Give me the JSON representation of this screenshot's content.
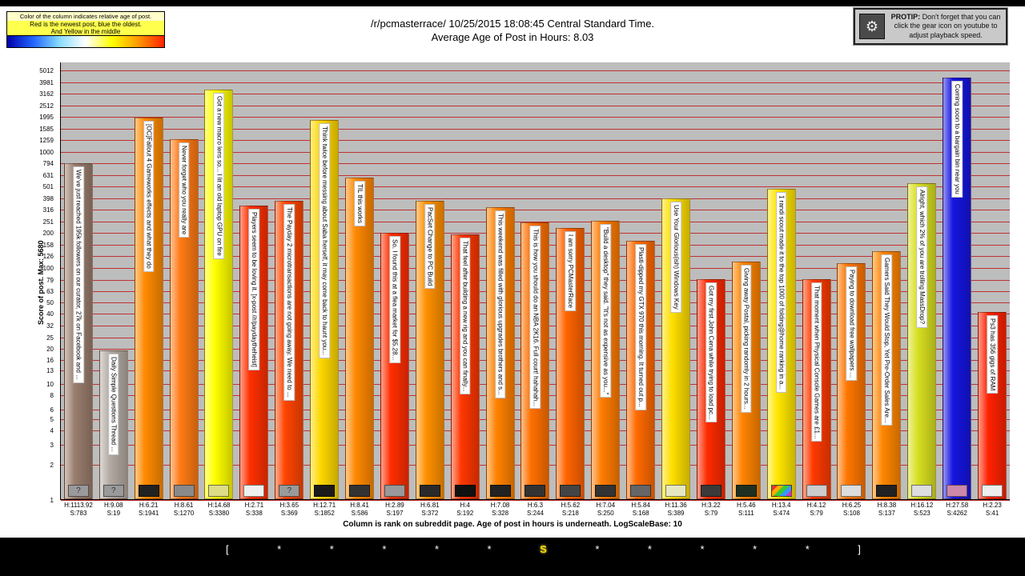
{
  "header": {
    "title_line1": "/r/pcmasterrace/ 10/25/2015 18:08:45 Central Standard Time.",
    "title_line2": "Average Age of Post in Hours: 8.03"
  },
  "legend": {
    "line1": "Color of the column indicates relative age of post.",
    "line2": "Red is the newest post, blue the oldest.",
    "line3": "And Yellow in the middle",
    "gradient": [
      "#0000aa",
      "#2266ff",
      "#88ddff",
      "#ffffff",
      "#ffff00",
      "#ff9900",
      "#ff2200"
    ]
  },
  "protip": {
    "label": "PROTIP:",
    "text": "Don't forget that you can click the gear icon on youtube to adjust playback speed.",
    "gear_icon": "⚙"
  },
  "chart_data": {
    "type": "bar",
    "title": "/r/pcmasterrace/ 10/25/2015 18:08:45 Central Standard Time. Average Age of Post in Hours: 8.03",
    "ylabel": "Score of post.  Max: 5680",
    "xlabel_caption": "Column is rank on subreddit page. Age of post in hours is underneath. LogScaleBase: 10",
    "y_scale": "log10",
    "y_max": 5012,
    "yticks": [
      5012,
      3981,
      3162,
      2512,
      1995,
      1585,
      1259,
      1000,
      794,
      631,
      501,
      398,
      316,
      251,
      200,
      158,
      126,
      100,
      79,
      63,
      50,
      40,
      32,
      25,
      20,
      16,
      13,
      10,
      8,
      6,
      5,
      4,
      3,
      2,
      1
    ],
    "grid_color": "#c03030",
    "plot_bg": "#bdbdbd",
    "bars": [
      {
        "rank": 1,
        "title": "We've just reached 195k followers on our curator, 27k on Facebook and ...",
        "hours_label": "H:1113.92",
        "score_label": "S:783",
        "hours": 1113.92,
        "score": 783,
        "color": "#9a7e6e",
        "thumb": "#9a9a9a",
        "thumb_glyph": "?"
      },
      {
        "rank": 2,
        "title": "Daily Simple Questions Thread ...",
        "hours_label": "H:9.08",
        "score_label": "S:19",
        "hours": 9.08,
        "score": 19,
        "color": "#b3aaa2",
        "thumb": "#9a9a9a",
        "thumb_glyph": "?"
      },
      {
        "rank": 3,
        "title": "[OC]Fallout 4 Gameworks effects and what they do",
        "hours_label": "H:6.21",
        "score_label": "S:1941",
        "hours": 6.21,
        "score": 1941,
        "color": "#ff8a00",
        "thumb": "#222222",
        "thumb_glyph": ""
      },
      {
        "rank": 4,
        "title": "Never forget who you really are",
        "hours_label": "H:8.61",
        "score_label": "S:1270",
        "hours": 8.61,
        "score": 1270,
        "color": "#ff7a14",
        "thumb": "#8a8a8a",
        "thumb_glyph": ""
      },
      {
        "rank": 5,
        "title": "Got a new macro lens so... I lit an old laptop GPU on fire",
        "hours_label": "H:14.68",
        "score_label": "S:3380",
        "hours": 14.68,
        "score": 3380,
        "color": "#ffff00",
        "thumb": "#dddd88",
        "thumb_glyph": ""
      },
      {
        "rank": 6,
        "title": "Players seem to be loving it. [x-post //r/paydaytheheist]",
        "hours_label": "H:2.71",
        "score_label": "S:338",
        "hours": 2.71,
        "score": 338,
        "color": "#ff3000",
        "thumb": "#f0f0f0",
        "thumb_glyph": ""
      },
      {
        "rank": 7,
        "title": "The Payday 2 microtransactions are not going away. We need to ...",
        "hours_label": "H:3.65",
        "score_label": "S:369",
        "hours": 3.65,
        "score": 369,
        "color": "#ff4400",
        "thumb": "#9a9a9a",
        "thumb_glyph": "?"
      },
      {
        "rank": 8,
        "title": "Think twice before messing about Saba herself, it may come back to haunt you...",
        "hours_label": "H:12.71",
        "score_label": "S:1852",
        "hours": 12.71,
        "score": 1852,
        "color": "#ffd800",
        "thumb": "#1a1a1a",
        "thumb_glyph": ""
      },
      {
        "rank": 9,
        "title": "TIL this works",
        "hours_label": "H:8.41",
        "score_label": "S:586",
        "hours": 8.41,
        "score": 586,
        "color": "#ff8800",
        "thumb": "#333333",
        "thumb_glyph": ""
      },
      {
        "rank": 10,
        "title": "So, I found this at a flea market for $5.28...",
        "hours_label": "H:2.89",
        "score_label": "S:197",
        "hours": 2.89,
        "score": 197,
        "color": "#ff2e00",
        "thumb": "#999999",
        "thumb_glyph": ""
      },
      {
        "rank": 11,
        "title": "PacSet Change to PC Build",
        "hours_label": "H:6.81",
        "score_label": "S:372",
        "hours": 6.81,
        "score": 372,
        "color": "#ff9000",
        "thumb": "#2a2a2a",
        "thumb_glyph": ""
      },
      {
        "rank": 12,
        "title": "That feel after building a new rig and you can finally...",
        "hours_label": "H:4",
        "score_label": "S:192",
        "hours": 4,
        "score": 192,
        "color": "#ff3600",
        "thumb": "#111111",
        "thumb_glyph": ""
      },
      {
        "rank": 13,
        "title": "This weekend was filled with glorious upgrades brothers and s...",
        "hours_label": "H:7.08",
        "score_label": "S:328",
        "hours": 7.08,
        "score": 328,
        "color": "#ff8200",
        "thumb": "#222222",
        "thumb_glyph": ""
      },
      {
        "rank": 14,
        "title": "This is how you should do an NBA 2K16. Full court! hahahah...",
        "hours_label": "H:6.3",
        "score_label": "S:244",
        "hours": 6.3,
        "score": 244,
        "color": "#ff7000",
        "thumb": "#333333",
        "thumb_glyph": ""
      },
      {
        "rank": 15,
        "title": "I am sorry PCMasterRace",
        "hours_label": "H:5.62",
        "score_label": "S:218",
        "hours": 5.62,
        "score": 218,
        "color": "#ff6400",
        "thumb": "#444444",
        "thumb_glyph": ""
      },
      {
        "rank": 16,
        "title": "\"Build a desktop\" they said. \"It's not as expensive as you...\"",
        "hours_label": "H:7.04",
        "score_label": "S:250",
        "hours": 7.04,
        "score": 250,
        "color": "#ff7c00",
        "thumb": "#333333",
        "thumb_glyph": ""
      },
      {
        "rank": 17,
        "title": "Plasti-dipped my GTX 970 this morning. It turned out p...",
        "hours_label": "H:5.84",
        "score_label": "S:168",
        "hours": 5.84,
        "score": 168,
        "color": "#ff6a00",
        "thumb": "#666666",
        "thumb_glyph": ""
      },
      {
        "rank": 18,
        "title": "Use Your Glorious(ish) Windows Key",
        "hours_label": "H:11.36",
        "score_label": "S:389",
        "hours": 11.36,
        "score": 389,
        "color": "#ffdf00",
        "thumb": "#e8e8c0",
        "thumb_glyph": ""
      },
      {
        "rank": 19,
        "title": "Got my first John Cena while trying to load pc...",
        "hours_label": "H:3.22",
        "score_label": "S:79",
        "hours": 3.22,
        "score": 79,
        "color": "#ff2a00",
        "thumb": "#3a3a3a",
        "thumb_glyph": ""
      },
      {
        "rank": 20,
        "title": "Giving away Postal, picking randomly in 2 hours...",
        "hours_label": "H:5.46",
        "score_label": "S:111",
        "hours": 5.46,
        "score": 111,
        "color": "#ff8400",
        "thumb": "#203020",
        "thumb_glyph": ""
      },
      {
        "rank": 21,
        "title": "1 randi scout made it to the top 1000 of folding@home ranking in a...",
        "hours_label": "H:13.4",
        "score_label": "S:474",
        "hours": 13.4,
        "score": 474,
        "color": "#ffe600",
        "thumb": "multi",
        "thumb_glyph": ""
      },
      {
        "rank": 22,
        "title": "That moment when Physical Console Games are £1...",
        "hours_label": "H:4.12",
        "score_label": "S:79",
        "hours": 4.12,
        "score": 79,
        "color": "#ff3a00",
        "thumb": "#cccccc",
        "thumb_glyph": ""
      },
      {
        "rank": 23,
        "title": "Paying to download free wallpapers ...",
        "hours_label": "H:6.25",
        "score_label": "S:108",
        "hours": 6.25,
        "score": 108,
        "color": "#ff7600",
        "thumb": "#dddddd",
        "thumb_glyph": ""
      },
      {
        "rank": 24,
        "title": "Gamers Said They Would Stop, Yet Pre-Order Sales Are...",
        "hours_label": "H:8.38",
        "score_label": "S:137",
        "hours": 8.38,
        "score": 137,
        "color": "#ff8600",
        "thumb": "#222222",
        "thumb_glyph": ""
      },
      {
        "rank": 25,
        "title": "Alright, which 2% of you are trolling MassDrop?",
        "hours_label": "H:16.12",
        "score_label": "S:523",
        "hours": 16.12,
        "score": 523,
        "color": "#d8e020",
        "thumb": "#dddddd",
        "thumb_glyph": ""
      },
      {
        "rank": 26,
        "title": "Coming soon to a bargain bin near you",
        "hours_label": "H:27.58",
        "score_label": "S:4262",
        "hours": 27.58,
        "score": 4262,
        "color": "#1515e0",
        "thumb": "#cc88aa",
        "thumb_glyph": ""
      },
      {
        "rank": 27,
        "title": "Ps3 has 356 gigs of RAM",
        "hours_label": "H:2.23",
        "score_label": "S:41",
        "hours": 2.23,
        "score": 41,
        "color": "#ff2200",
        "thumb": "#eeeeee",
        "thumb_glyph": ""
      }
    ]
  },
  "timeline": {
    "tokens": [
      "[",
      "*",
      "*",
      "*",
      "*",
      "*",
      "S",
      "*",
      "*",
      "*",
      "*",
      "*",
      "]"
    ],
    "highlight_token": "S",
    "highlight_color": "#ffdd00"
  }
}
